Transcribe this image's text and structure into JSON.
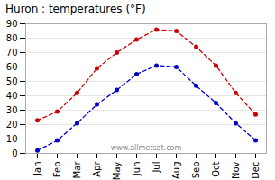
{
  "chart_data": {
    "type": "line",
    "title": "Huron : temperatures (°F)",
    "categories": [
      "Jan",
      "Feb",
      "Mar",
      "Apr",
      "May",
      "Jun",
      "Jul",
      "Aug",
      "Sep",
      "Oct",
      "Nov",
      "Dec"
    ],
    "series": [
      {
        "color": "#cc0000",
        "values": [
          23,
          29,
          42,
          59,
          70,
          79,
          86,
          85,
          74,
          61,
          42,
          27
        ],
        "marker": "circle",
        "line_style": "dashed"
      },
      {
        "color": "#0000cc",
        "values": [
          2,
          9,
          21,
          34,
          44,
          55,
          61,
          60,
          47,
          35,
          21,
          9
        ],
        "marker": "circle",
        "line_style": "dashed"
      }
    ],
    "ylim": [
      0,
      90
    ],
    "yticks": [
      0,
      10,
      20,
      30,
      40,
      50,
      60,
      70,
      80,
      90
    ],
    "grid": true,
    "annotations": [
      "www.allmetsat.com"
    ]
  }
}
